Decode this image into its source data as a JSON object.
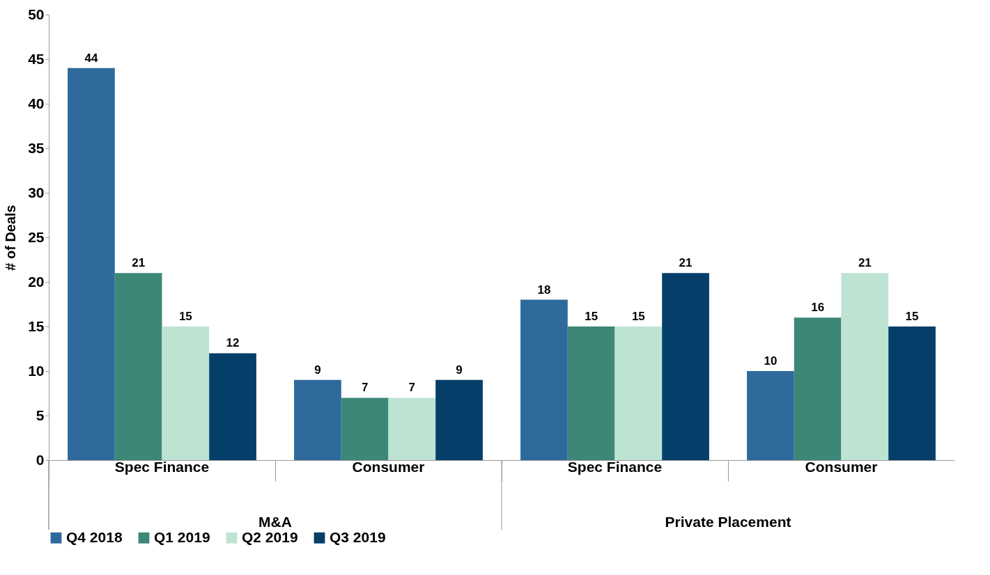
{
  "chart_data": {
    "type": "bar",
    "ylabel": "# of Deals",
    "categories": [
      "Spec Finance",
      "Consumer",
      "Spec Finance",
      "Consumer"
    ],
    "series": [
      {
        "name": "Q4 2018",
        "color": "#2e6a9c",
        "values": [
          44,
          9,
          18,
          10
        ]
      },
      {
        "name": "Q1 2019",
        "color": "#3d8778",
        "values": [
          21,
          7,
          15,
          16
        ]
      },
      {
        "name": "Q2 2019",
        "color": "#bde3d3",
        "values": [
          15,
          7,
          15,
          21
        ]
      },
      {
        "name": "Q3 2019",
        "color": "#053f69",
        "values": [
          12,
          9,
          21,
          15
        ]
      }
    ],
    "annotations": [
      "M&A",
      "Private Placement"
    ],
    "ylim": [
      0,
      50
    ],
    "yticks": [
      0,
      5,
      10,
      15,
      20,
      25,
      30,
      35,
      40,
      45,
      50
    ],
    "grid": false,
    "legend": "bottom",
    "data_labels": true
  }
}
